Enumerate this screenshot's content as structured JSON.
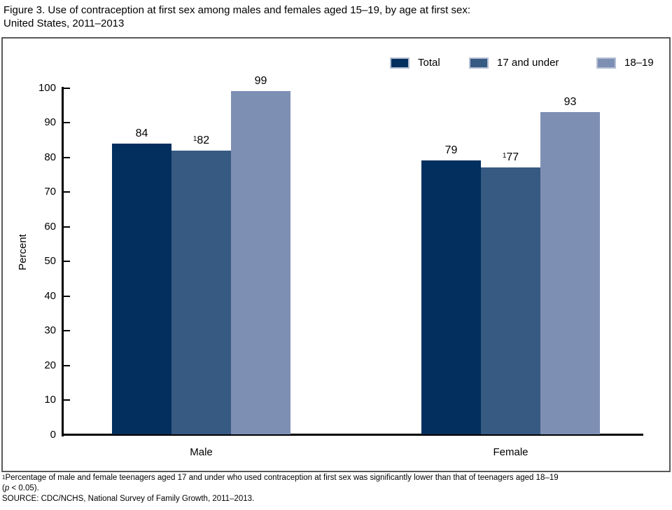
{
  "header": {
    "title_line1": "Figure 3. Use of contraception at first sex among males and females aged 15–19, by age at first sex:",
    "title_line2": "United States, 2011–2013"
  },
  "colors": {
    "frame_border": "#58595B",
    "axis": "#000000",
    "legend_swatch_border": "#B5C0D4"
  },
  "chart_data": {
    "type": "bar",
    "title": "Figure 3. Use of contraception at first sex among males and females aged 15–19, by age at first sex: United States, 2011–2013",
    "xlabel": "",
    "ylabel": "Percent",
    "ylim": [
      0,
      100
    ],
    "yticks": [
      0,
      10,
      20,
      30,
      40,
      50,
      60,
      70,
      80,
      90,
      100
    ],
    "grid": false,
    "legend_position": "top-right",
    "categories": [
      "Male",
      "Female"
    ],
    "series": [
      {
        "name": "Total",
        "color": "#022F5E",
        "values": [
          84,
          79
        ],
        "value_labels": [
          "84",
          "79"
        ],
        "flags": [
          "",
          ""
        ]
      },
      {
        "name": "17 and under",
        "color": "#375A83",
        "values": [
          82,
          77
        ],
        "value_labels": [
          "82",
          "77"
        ],
        "flags": [
          "1",
          "1"
        ]
      },
      {
        "name": "18–19",
        "color": "#7E8FB4",
        "values": [
          99,
          93
        ],
        "value_labels": [
          "99",
          "93"
        ],
        "flags": [
          "",
          ""
        ]
      }
    ]
  },
  "footnote": {
    "sup_marker": "1",
    "line1": "Percentage of male and female teenagers aged 17 and under who used contraception at first sex was significantly lower than that of teenagers aged 18–19",
    "line2_open": "(",
    "line2_italic": "p",
    "line2_rest": " < 0.05).",
    "source": "SOURCE: CDC/NCHS, National Survey of Family Growth, 2011–2013."
  }
}
